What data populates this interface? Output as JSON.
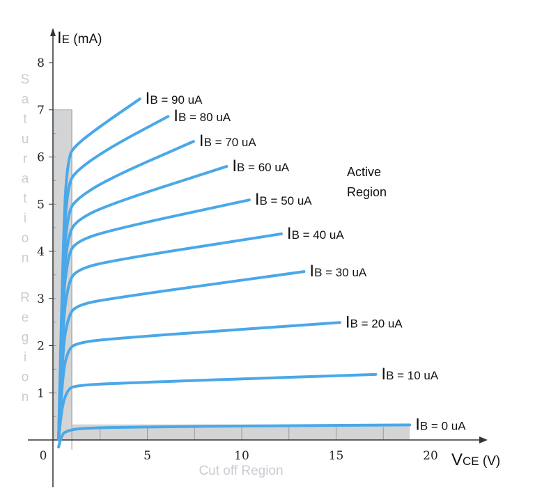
{
  "chart_data": {
    "type": "line",
    "title": "",
    "xlabel": {
      "main": "V",
      "sub": "CE",
      "unit": " (V)"
    },
    "ylabel": {
      "main": "I",
      "sub": "E",
      "unit": "  (mA)"
    },
    "xlim": [
      0,
      21
    ],
    "ylim": [
      0,
      8.5
    ],
    "x_ticks": [
      0,
      5,
      10,
      15,
      20
    ],
    "y_ticks": [
      1,
      2,
      3,
      4,
      5,
      6,
      7,
      8
    ],
    "grid": false,
    "line_color": "#4aa8e8",
    "regions": {
      "saturation": {
        "label": "Saturation Region",
        "vce_max": 1,
        "ie_max": 7,
        "color": "#d3d4d6"
      },
      "cutoff": {
        "label": "Cut off Region",
        "vce_max": 18.9,
        "ie_max": 0.33,
        "color": "#d3d4d6"
      },
      "active": {
        "label_line1": "Active",
        "label_line2": "Region"
      }
    },
    "series": [
      {
        "name": "IB = 90 uA",
        "label_main": "I",
        "label_rest": "B = 90 uA",
        "points": [
          [
            0.3,
            0
          ],
          [
            0.55,
            4.6
          ],
          [
            0.8,
            6.0
          ],
          [
            1.2,
            6.25
          ],
          [
            2.5,
            6.65
          ],
          [
            4.6,
            7.23
          ]
        ]
      },
      {
        "name": "IB = 80 uA",
        "label_main": "I",
        "label_rest": "B = 80 uA",
        "points": [
          [
            0.3,
            0
          ],
          [
            0.55,
            4.2
          ],
          [
            0.8,
            5.4
          ],
          [
            1.2,
            5.7
          ],
          [
            3,
            6.2
          ],
          [
            6.1,
            6.86
          ]
        ]
      },
      {
        "name": "IB = 70 uA",
        "label_main": "I",
        "label_rest": "B = 70 uA",
        "points": [
          [
            0.3,
            0
          ],
          [
            0.55,
            3.8
          ],
          [
            0.8,
            4.8
          ],
          [
            1.2,
            5.1
          ],
          [
            3,
            5.55
          ],
          [
            7.45,
            6.33
          ]
        ]
      },
      {
        "name": "IB = 60 uA",
        "label_main": "I",
        "label_rest": "B = 60 uA",
        "points": [
          [
            0.3,
            0
          ],
          [
            0.55,
            3.4
          ],
          [
            0.8,
            4.3
          ],
          [
            1.2,
            4.65
          ],
          [
            3,
            5.0
          ],
          [
            9.2,
            5.8
          ]
        ]
      },
      {
        "name": "IB = 50 uA",
        "label_main": "I",
        "label_rest": "B = 50 uA",
        "points": [
          [
            0.3,
            0
          ],
          [
            0.5,
            2.9
          ],
          [
            0.8,
            3.9
          ],
          [
            1.2,
            4.2
          ],
          [
            3,
            4.45
          ],
          [
            10.4,
            5.09
          ]
        ]
      },
      {
        "name": "IB = 40 uA",
        "label_main": "I",
        "label_rest": "B = 40 uA",
        "points": [
          [
            0.3,
            0
          ],
          [
            0.5,
            2.4
          ],
          [
            0.8,
            3.3
          ],
          [
            1.2,
            3.6
          ],
          [
            3,
            3.8
          ],
          [
            12.1,
            4.37
          ]
        ]
      },
      {
        "name": "IB = 30 uA",
        "label_main": "I",
        "label_rest": "B = 30 uA",
        "points": [
          [
            0.3,
            0
          ],
          [
            0.5,
            1.9
          ],
          [
            0.8,
            2.6
          ],
          [
            1.2,
            2.85
          ],
          [
            3,
            3.0
          ],
          [
            13.3,
            3.57
          ]
        ]
      },
      {
        "name": "IB = 20 uA",
        "label_main": "I",
        "label_rest": "B = 20 uA",
        "points": [
          [
            0.3,
            0
          ],
          [
            0.5,
            1.4
          ],
          [
            0.8,
            1.9
          ],
          [
            1.2,
            2.05
          ],
          [
            3,
            2.15
          ],
          [
            15.2,
            2.49
          ]
        ]
      },
      {
        "name": "IB = 10 uA",
        "label_main": "I",
        "label_rest": "B = 10 uA",
        "points": [
          [
            0.3,
            0
          ],
          [
            0.45,
            0.7
          ],
          [
            0.8,
            1.08
          ],
          [
            1.2,
            1.15
          ],
          [
            3,
            1.2
          ],
          [
            17.1,
            1.39
          ]
        ]
      },
      {
        "name": "IB = 0 uA",
        "label_main": "I",
        "label_rest": "B = 0 uA",
        "points": [
          [
            0.3,
            -0.15
          ],
          [
            0.45,
            0.12
          ],
          [
            0.8,
            0.2
          ],
          [
            1.5,
            0.25
          ],
          [
            5,
            0.28
          ],
          [
            18.9,
            0.32
          ]
        ]
      }
    ]
  }
}
